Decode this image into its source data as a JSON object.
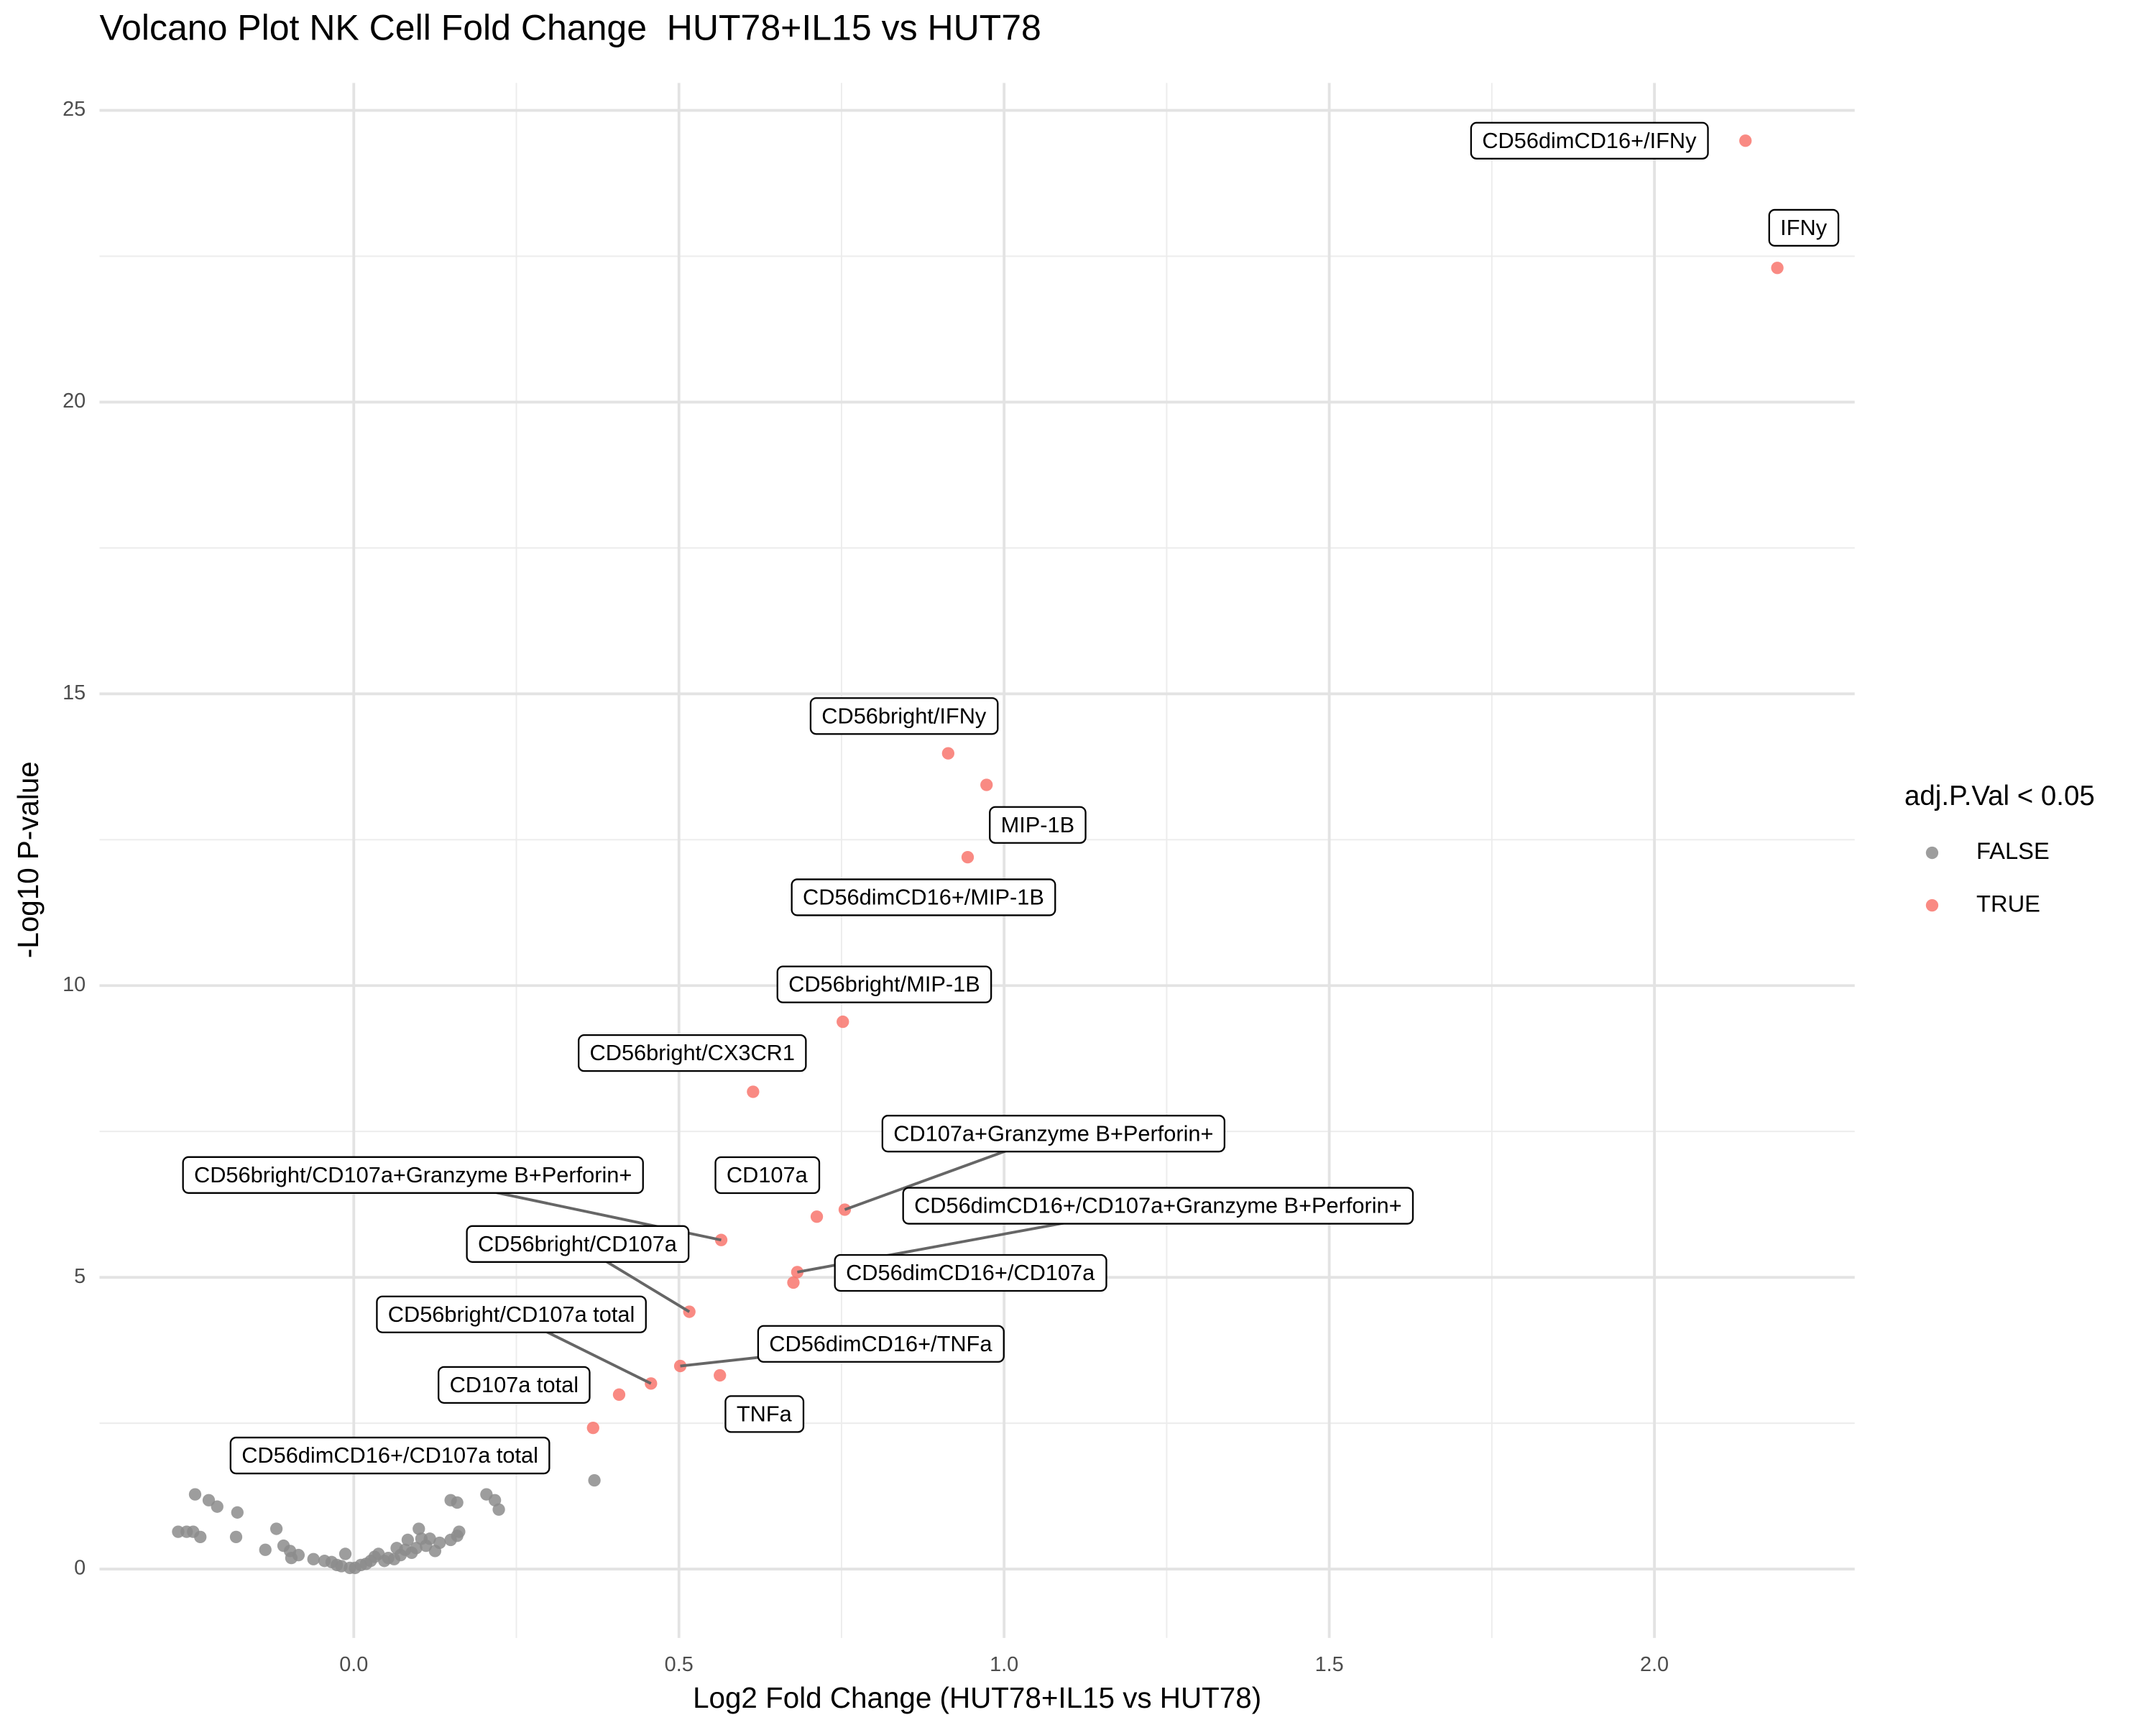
{
  "chart_data": {
    "type": "scatter",
    "title": "Volcano Plot NK Cell Fold Change  HUT78+IL15 vs HUT78",
    "x_label": "Log2 Fold Change (HUT78+IL15 vs HUT78)",
    "y_label": "-Log10 P-value",
    "legend_title": "adj.P.Val < 0.05",
    "legend_position": "right",
    "grid": true,
    "xlim": [
      -0.391,
      2.308
    ],
    "ylim": [
      -1.18,
      25.47
    ],
    "xticks": [
      {
        "value": 0,
        "label": "0.0"
      },
      0.5,
      {
        "value": 1,
        "label": "1.0"
      },
      1.5,
      {
        "value": 2,
        "label": "2.0"
      }
    ],
    "yticks": [
      0,
      5,
      10,
      15,
      20,
      25
    ],
    "series": [
      {
        "name": "FALSE",
        "color": "#8c8c8c",
        "x": [
          -0.27,
          -0.257,
          -0.247,
          -0.244,
          -0.236,
          -0.223,
          -0.21,
          -0.181,
          -0.179,
          -0.136,
          -0.119,
          -0.108,
          -0.098,
          -0.096,
          -0.085,
          -0.062,
          -0.045,
          -0.034,
          -0.026,
          -0.019,
          -0.013,
          -0.006,
          0.002,
          0.011,
          0.019,
          0.026,
          0.032,
          0.038,
          0.047,
          0.053,
          0.062,
          0.066,
          0.072,
          0.079,
          0.083,
          0.089,
          0.096,
          0.1,
          0.104,
          0.111,
          0.117,
          0.125,
          0.132,
          0.149,
          0.149,
          0.159,
          0.159,
          0.162,
          0.204,
          0.217,
          0.223,
          0.37
        ],
        "values": [
          0.64,
          0.64,
          0.64,
          1.28,
          0.55,
          1.18,
          1.07,
          0.55,
          0.97,
          0.33,
          0.69,
          0.4,
          0.31,
          0.19,
          0.24,
          0.17,
          0.14,
          0.12,
          0.07,
          0.05,
          0.26,
          0.02,
          0.02,
          0.07,
          0.09,
          0.14,
          0.21,
          0.26,
          0.14,
          0.19,
          0.17,
          0.36,
          0.24,
          0.33,
          0.5,
          0.28,
          0.36,
          0.69,
          0.52,
          0.4,
          0.52,
          0.31,
          0.45,
          0.5,
          1.18,
          0.57,
          1.14,
          0.64,
          1.28,
          1.18,
          1.02,
          1.52
        ]
      },
      {
        "name": "TRUE",
        "color": "#f8766d",
        "x": [
          2.14,
          2.189,
          0.914,
          0.973,
          0.944,
          0.752,
          0.614,
          0.755,
          0.712,
          0.682,
          0.676,
          0.565,
          0.516,
          0.457,
          0.502,
          0.563,
          0.408,
          0.368
        ],
        "values": [
          24.48,
          22.3,
          13.98,
          13.44,
          12.2,
          9.38,
          8.18,
          6.16,
          6.04,
          5.09,
          4.91,
          5.64,
          4.41,
          3.18,
          3.48,
          3.32,
          2.99,
          2.42
        ],
        "labels": [
          "CD56dimCD16+/IFNy",
          "IFNy",
          "CD56bright/IFNy",
          "MIP-1B",
          "CD56dimCD16+/MIP-1B",
          "CD56bright/MIP-1B",
          "CD56bright/CX3CR1",
          "CD107a+Granzyme B+Perforin+",
          "CD107a",
          "CD56dimCD16+/CD107a+Granzyme B+Perforin+",
          "CD56dimCD16+/CD107a",
          "CD56bright/CD107a+Granzyme B+Perforin+",
          "CD56bright/CD107a",
          "CD56bright/CD107a total",
          "CD56dimCD16+/TNFa",
          "TNFa",
          "CD107a total",
          "CD56dimCD16+/CD107a total"
        ]
      }
    ]
  }
}
